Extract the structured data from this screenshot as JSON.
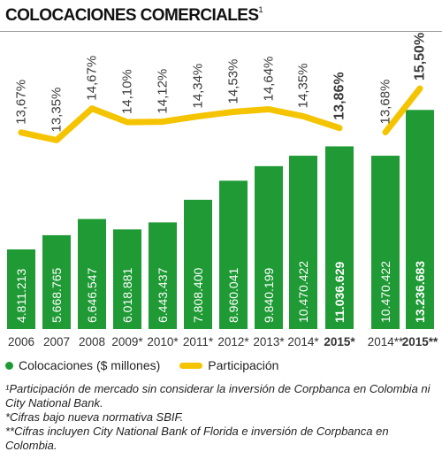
{
  "title": "COLOCACIONES COMERCIALES",
  "title_sup": "1",
  "chart_data": {
    "type": "bar+line",
    "categories": [
      "2006",
      "2007",
      "2008",
      "2009*",
      "2010*",
      "2011*",
      "2012*",
      "2013*",
      "2014*",
      "2015*",
      "2014**",
      "2015**"
    ],
    "series": [
      {
        "name": "Colocaciones ($ millones)",
        "type": "bar",
        "values": [
          4811213,
          5668765,
          6646547,
          6018881,
          6443437,
          7808400,
          8960041,
          9840199,
          10470422,
          11036629,
          10470422,
          13236683
        ],
        "labels": [
          "4.811.213",
          "5.668.765",
          "6.646.547",
          "6.018.881",
          "6.443.437",
          "7.808.400",
          "8.960.041",
          "9.840.199",
          "10.470.422",
          "11.036.629",
          "10.470.422",
          "13.236.683"
        ]
      },
      {
        "name": "Participación",
        "type": "line",
        "segments": [
          [
            0,
            9
          ],
          [
            10,
            11
          ]
        ],
        "values": [
          13.67,
          13.35,
          14.67,
          14.1,
          14.12,
          14.34,
          14.53,
          14.64,
          14.35,
          13.86,
          13.68,
          15.5
        ],
        "labels": [
          "13,67%",
          "13,35%",
          "14,67%",
          "14,10%",
          "14,12%",
          "14,34%",
          "14,53%",
          "14,64%",
          "14,35%",
          "13,86%",
          "13,68%",
          "15,50%"
        ]
      }
    ],
    "highlight_indices": [
      9,
      11
    ],
    "bar_ylim": [
      0,
      14000000
    ],
    "line_ylim": [
      13.0,
      15.8
    ],
    "grid": false,
    "legend_position": "bottom-left"
  },
  "legend": {
    "bars": "Colocaciones ($ millones)",
    "line": "Participación"
  },
  "footnotes": [
    "¹Participación de mercado sin considerar la inversión de Corpbanca en Colombia ni City National Bank.",
    "*Cifras bajo nueva normativa SBIF.",
    "**Cifras incluyen City National Bank of Florida e inversión de Corpbanca en Colombia."
  ],
  "colors": {
    "bar": "#1f9a35",
    "line": "#f5c400",
    "bar_label": "#ffffff",
    "text": "#333333"
  }
}
